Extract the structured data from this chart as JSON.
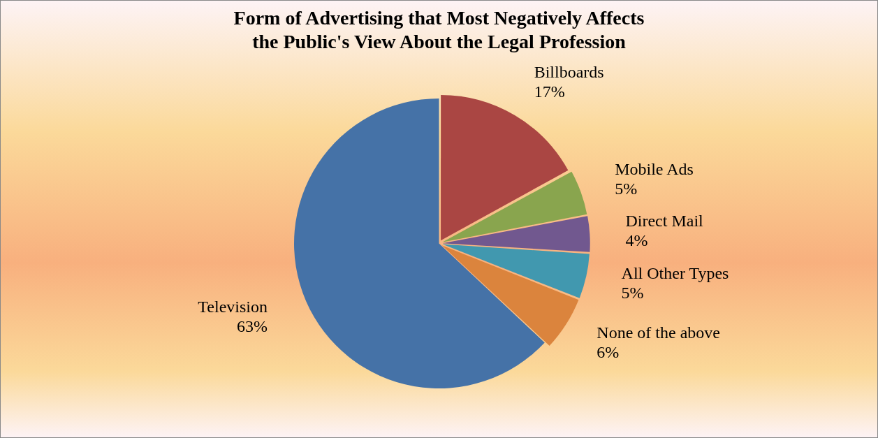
{
  "chart_data": {
    "type": "pie",
    "title": "Form of Advertising that Most Negatively Affects\nthe Public's View About the Legal Profession",
    "categories": [
      "Billboards",
      "Mobile Ads",
      "Direct Mail",
      "All Other Types",
      "None of the above",
      "Television"
    ],
    "values": [
      17,
      5,
      4,
      5,
      6,
      63
    ],
    "value_labels": [
      "17%",
      "5%",
      "4%",
      "5%",
      "6%",
      "63%"
    ],
    "colors": [
      "#aa4643",
      "#89a54e",
      "#71588f",
      "#4198af",
      "#db843d",
      "#4572a7"
    ],
    "legend": false
  }
}
